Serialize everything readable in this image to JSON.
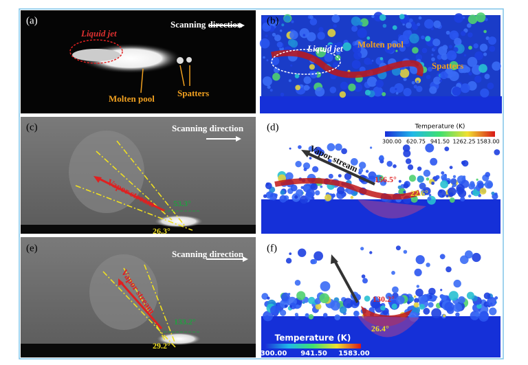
{
  "panels": [
    {
      "label": "(a)",
      "annotations": [
        "Scanning direction",
        "Liquid jet",
        "Molten pool",
        "Spatters"
      ]
    },
    {
      "label": "(b)",
      "annotations": [
        "Liquid jet",
        "Molten pool",
        "Spatters"
      ]
    },
    {
      "label": "(c)",
      "annotations": [
        "Scanning direction",
        "Vapor stream",
        "53.3°",
        "26.3°"
      ]
    },
    {
      "label": "(d)",
      "annotations": [
        "Vapor stream",
        "156.5°",
        "22.6°"
      ],
      "colorbar": {
        "title": "Temperature (K)",
        "ticks": [
          "300.00",
          "620.75",
          "941.50",
          "1262.25",
          "1583.00"
        ]
      }
    },
    {
      "label": "(e)",
      "annotations": [
        "Scanning direction",
        "Vapor stream",
        "133.2°",
        "29.2°"
      ]
    },
    {
      "label": "(f)",
      "annotations": [
        "130.2°",
        "26.4°"
      ],
      "colorbar": {
        "title": "Temperature (K)",
        "ticks": [
          "300.00",
          "941.50",
          "1583.00"
        ]
      }
    }
  ]
}
